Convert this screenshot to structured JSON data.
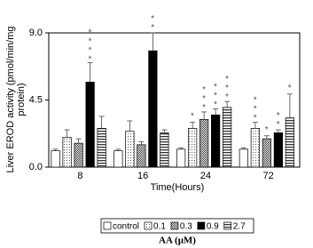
{
  "chart_data": {
    "type": "bar",
    "ylabel": [
      "Liver EROD activity (pmol/min/mg",
      "protein)"
    ],
    "xlabel": "Time(Hours)",
    "legend_title": "AA (μM)",
    "legend": "bottom",
    "categories": [
      "8",
      "16",
      "24",
      "72"
    ],
    "ylim": [
      0,
      9
    ],
    "yticks": [
      {
        "value": 0,
        "label": "0.0"
      },
      {
        "value": 4.5,
        "label": "4.5"
      },
      {
        "value": 9,
        "label": "9.0"
      }
    ],
    "series": [
      {
        "name": "control",
        "color": "#ffffff",
        "pattern": "none",
        "values": [
          1.1,
          1.1,
          1.2,
          1.2
        ],
        "errors": [
          0.1,
          0.1,
          0.1,
          0.1
        ],
        "annotations": [
          null,
          null,
          null,
          null
        ]
      },
      {
        "name": "0.1",
        "color": "#d9d9d9",
        "pattern": "dots",
        "values": [
          2.0,
          2.4,
          2.6,
          2.6
        ],
        "errors": [
          0.5,
          0.7,
          0.4,
          0.4
        ],
        "annotations": [
          null,
          null,
          "*",
          "***"
        ]
      },
      {
        "name": "0.3",
        "color": "#9a9a9a",
        "pattern": "checker",
        "values": [
          1.6,
          1.5,
          3.2,
          1.9
        ],
        "errors": [
          0.3,
          0.2,
          0.5,
          0.2
        ],
        "annotations": [
          null,
          null,
          "***",
          "*"
        ]
      },
      {
        "name": "0.9",
        "color": "#000000",
        "pattern": "solid",
        "values": [
          5.7,
          7.8,
          3.5,
          2.3
        ],
        "errors": [
          1.3,
          1.2,
          0.4,
          0.2
        ],
        "annotations": [
          "****",
          "**",
          "***",
          "**"
        ]
      },
      {
        "name": "2.7",
        "color": "#888888",
        "pattern": "stripes",
        "values": [
          2.6,
          2.3,
          4.0,
          3.3
        ],
        "errors": [
          0.8,
          0.2,
          0.4,
          1.6
        ],
        "annotations": [
          null,
          null,
          "***",
          "*"
        ]
      }
    ]
  }
}
